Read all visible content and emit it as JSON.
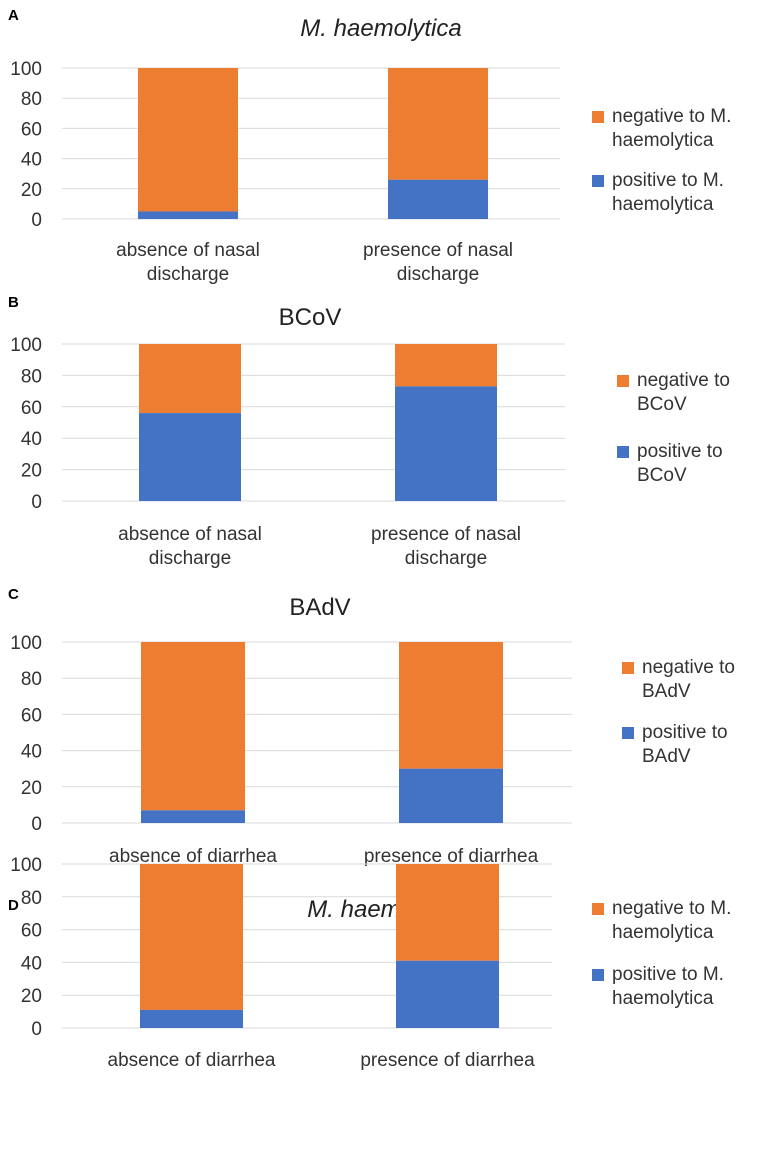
{
  "colors": {
    "negative": "#ED7D31",
    "positive": "#4472C4"
  },
  "chart_data": [
    {
      "panel": "A",
      "type": "bar",
      "stacked": true,
      "title": "M. haemolytica",
      "title_italic": true,
      "categories": [
        [
          "absence of nasal",
          "discharge"
        ],
        [
          "presence of nasal",
          "discharge"
        ]
      ],
      "series": [
        {
          "name": "positive to M. haemolytica",
          "legend_lines": [
            "positive to M.",
            "haemolytica"
          ],
          "values": [
            5,
            26
          ]
        },
        {
          "name": "negative to M. haemolytica",
          "legend_lines": [
            "negative to M.",
            "haemolytica"
          ],
          "values": [
            95,
            74
          ]
        }
      ],
      "ylim": [
        0,
        100
      ],
      "yticks": [
        "0",
        "20",
        "40",
        "60",
        "80",
        "100"
      ],
      "grid": true,
      "legend": "right"
    },
    {
      "panel": "B",
      "type": "bar",
      "stacked": true,
      "title": "BCoV",
      "title_italic": false,
      "categories": [
        [
          "absence of nasal",
          "discharge"
        ],
        [
          "presence of nasal",
          "discharge"
        ]
      ],
      "series": [
        {
          "name": "positive to BCoV",
          "legend_lines": [
            "positive to",
            "BCoV"
          ],
          "values": [
            56,
            73
          ]
        },
        {
          "name": "negative to BCoV",
          "legend_lines": [
            "negative to",
            "BCoV"
          ],
          "values": [
            44,
            27
          ]
        }
      ],
      "ylim": [
        0,
        100
      ],
      "yticks": [
        "0",
        "20",
        "40",
        "60",
        "80",
        "100"
      ],
      "grid": true,
      "legend": "right"
    },
    {
      "panel": "C",
      "type": "bar",
      "stacked": true,
      "title": "BAdV",
      "title_italic": false,
      "categories": [
        [
          "absence of diarrhea"
        ],
        [
          "presence of diarrhea"
        ]
      ],
      "series": [
        {
          "name": "positive to BAdV",
          "legend_lines": [
            "positive to",
            "BAdV"
          ],
          "values": [
            7,
            30
          ]
        },
        {
          "name": "negative to BAdV",
          "legend_lines": [
            "negative to",
            "BAdV"
          ],
          "values": [
            93,
            70
          ]
        }
      ],
      "ylim": [
        0,
        100
      ],
      "yticks": [
        "0",
        "20",
        "40",
        "60",
        "80",
        "100"
      ],
      "grid": true,
      "legend": "right"
    },
    {
      "panel": "D",
      "type": "bar",
      "stacked": true,
      "title": "M. haemolytica",
      "title_italic": true,
      "categories": [
        [
          "absence of diarrhea"
        ],
        [
          "presence of diarrhea"
        ]
      ],
      "series": [
        {
          "name": "positive to M. haemolytica",
          "legend_lines": [
            "positive to M.",
            "haemolytica"
          ],
          "values": [
            11,
            41
          ]
        },
        {
          "name": "negative to M. haemolytica",
          "legend_lines": [
            "negative to M.",
            "haemolytica"
          ],
          "values": [
            89,
            59
          ]
        }
      ],
      "ylim": [
        0,
        100
      ],
      "yticks": [
        "0",
        "20",
        "40",
        "60",
        "80",
        "100"
      ],
      "grid": true,
      "legend": "right"
    }
  ]
}
